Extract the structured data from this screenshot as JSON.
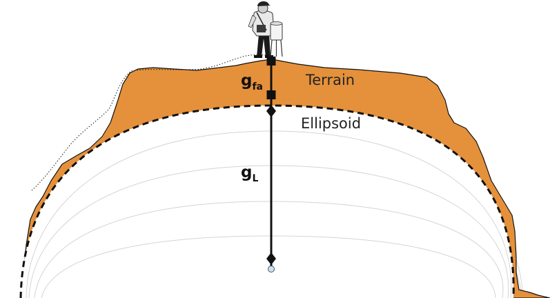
{
  "labels": {
    "terrain": "Terrain",
    "ellipsoid": "Ellipsoid",
    "g_fa": {
      "symbol": "g",
      "subscript": "fa"
    },
    "g_L": {
      "symbol": "g",
      "subscript": "L"
    }
  },
  "colors": {
    "terrain_fill": "#e5913b",
    "outline": "#111111",
    "level_curves": "#d4d4d4",
    "center_point": "#cfe0ee",
    "background": "#ffffff"
  }
}
